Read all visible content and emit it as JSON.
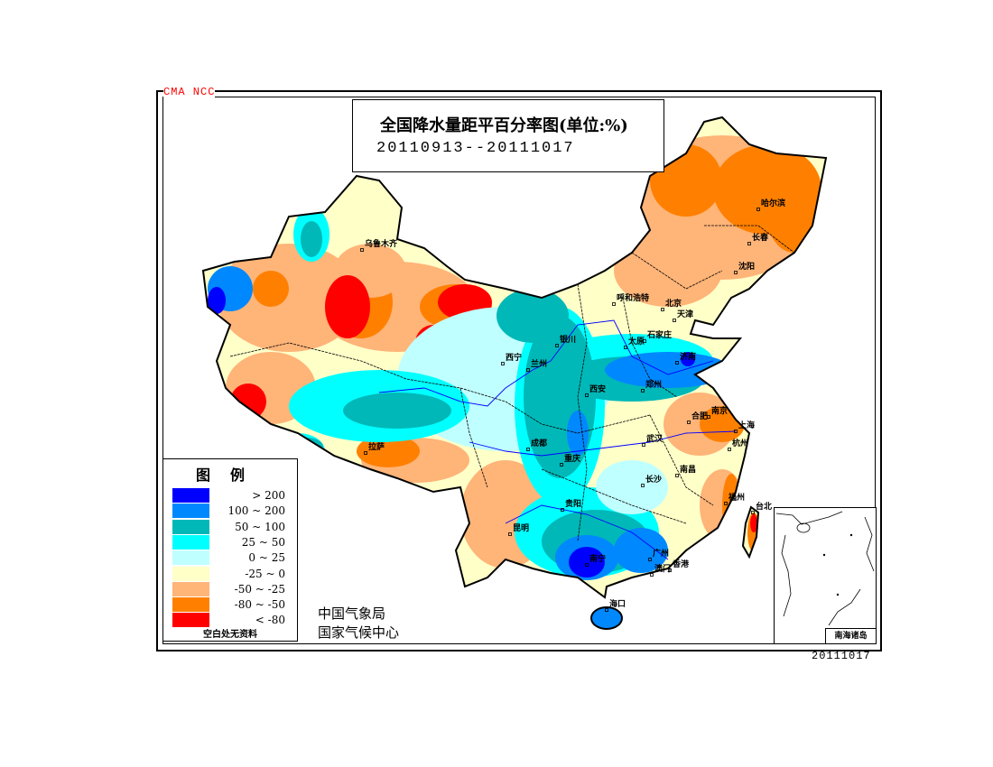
{
  "watermark": "CMA  NCC",
  "title": "全国降水量距平百分率图(单位:%)",
  "date_range": "20110913--20111017",
  "legend": {
    "title": "图例",
    "items": [
      {
        "label": "> 200",
        "color": "#0000ff"
      },
      {
        "label": "100 ~ 200",
        "color": "#0088ff"
      },
      {
        "label": "50 ~ 100",
        "color": "#00b8b8"
      },
      {
        "label": "25 ~ 50",
        "color": "#00ffff"
      },
      {
        "label": "0 ~ 25",
        "color": "#c0ffff"
      },
      {
        "label": "-25 ~ 0",
        "color": "#ffffc8"
      },
      {
        "label": "-50 ~ -25",
        "color": "#ffb478"
      },
      {
        "label": "-80 ~ -50",
        "color": "#ff8000"
      },
      {
        "label": "< -80",
        "color": "#ff0000"
      }
    ],
    "note": "空白处无资料"
  },
  "agency": [
    "中国气象局",
    "国家气候中心"
  ],
  "inset_label": "南海诸岛",
  "issue_date": "20111017",
  "cities": [
    "乌鲁木齐",
    "拉萨",
    "西宁",
    "兰州",
    "银川",
    "呼和浩特",
    "北京",
    "天津",
    "石家庄",
    "太原",
    "济南",
    "郑州",
    "西安",
    "成都",
    "重庆",
    "武汉",
    "合肥",
    "南京",
    "上海",
    "杭州",
    "长沙",
    "南昌",
    "福州",
    "台北",
    "贵阳",
    "昆明",
    "南宁",
    "广州",
    "香港",
    "澳门",
    "海口",
    "哈尔滨",
    "长春",
    "沈阳"
  ]
}
